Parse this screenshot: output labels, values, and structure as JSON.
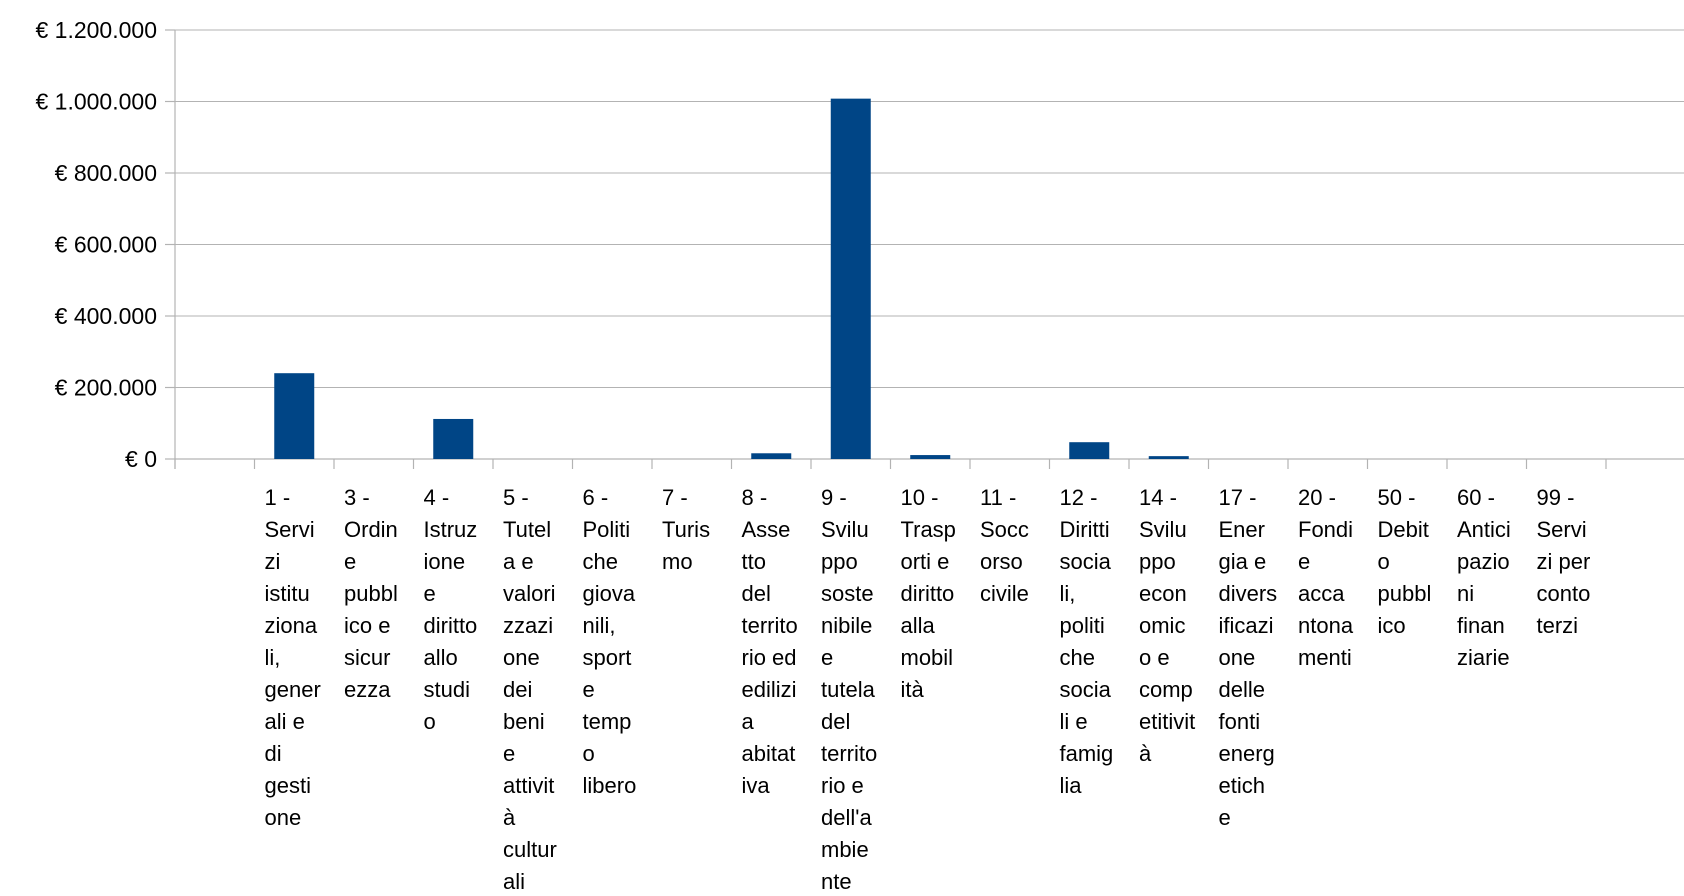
{
  "chart_data": {
    "type": "bar",
    "title": "",
    "xlabel": "",
    "ylabel": "",
    "ylim": [
      0,
      1200000
    ],
    "y_ticks": [
      0,
      200000,
      400000,
      600000,
      800000,
      1000000,
      1200000
    ],
    "y_tick_labels": [
      "€ 0",
      "€ 200.000",
      "€ 400.000",
      "€ 600.000",
      "€ 800.000",
      "€ 1.000.000",
      "€ 1.200.000"
    ],
    "grid": true,
    "legend": "none",
    "bar_color": "#004586",
    "categories": [
      "1 - Servizi istituzionali, generali e di gestione",
      "3 - Ordine pubblico e sicurezza",
      "4 - Istruzione e diritto allo studio",
      "5 - Tutela e valorizzazione dei beni e attività culturali",
      "6 - Politiche giovanili, sport e tempo libero",
      "7 - Turismo",
      "8 - Assetto del territorio ed edilizia abitativa",
      "9 - Sviluppo sostenibile e tutela del territorio e dell'ambiente",
      "10 - Trasporti e diritto alla mobilità",
      "11 - Soccorso civile",
      "12 - Diritti sociali, politiche sociali e famiglia",
      "14 - Sviluppo economico e competitività",
      "17 - Energia e diversificazione delle fonti energetiche",
      "20 - Fondi e accantonamenti",
      "50 - Debito pubblico",
      "60 - Anticipazioni finanziarie",
      "99 - Servizi per conto terzi"
    ],
    "category_label_lines": [
      [
        "1 -",
        "Servi",
        "zi",
        "istitu",
        "ziona",
        "li,",
        "gener",
        "ali e",
        "di",
        "gesti",
        "one"
      ],
      [
        "3 -",
        "Ordin",
        "e",
        "pubbl",
        "ico e",
        "sicur",
        "ezza"
      ],
      [
        "4 -",
        "Istruz",
        "ione",
        "e",
        "diritto",
        "allo",
        "studi",
        "o"
      ],
      [
        "5 -",
        "Tutel",
        "a e",
        "valori",
        "zzazi",
        "one",
        "dei",
        "beni",
        "e",
        "attivit",
        "à",
        "cultur",
        "ali"
      ],
      [
        "6 -",
        "Politi",
        "che",
        "giova",
        "nili,",
        "sport",
        "e",
        "temp",
        "o",
        "libero"
      ],
      [
        "7 -",
        "Turis",
        "mo"
      ],
      [
        "8 -",
        "Asse",
        "tto",
        "del",
        "territo",
        "rio ed",
        "edilizi",
        "a",
        "abitat",
        "iva"
      ],
      [
        "9 -",
        "Svilu",
        "ppo",
        "soste",
        "nibile",
        "e",
        "tutela",
        "del",
        "territo",
        "rio e",
        "dell'a",
        "mbie",
        "nte"
      ],
      [
        "10 -",
        "Trasp",
        "orti e",
        "diritto",
        "alla",
        "mobil",
        "ità"
      ],
      [
        "11 -",
        "Socc",
        "orso",
        "civile"
      ],
      [
        "12 -",
        "Diritti",
        "socia",
        "li,",
        "politi",
        "che",
        "socia",
        "li e",
        "famig",
        "lia"
      ],
      [
        "14 -",
        "Svilu",
        "ppo",
        "econ",
        "omic",
        "o e",
        "comp",
        "etitivit",
        "à"
      ],
      [
        "17 -",
        "Ener",
        "gia e",
        "divers",
        "ificazi",
        "one",
        "delle",
        "fonti",
        "energ",
        "etich",
        "e"
      ],
      [
        "20 -",
        "Fondi",
        "e",
        "acca",
        "ntona",
        "menti"
      ],
      [
        "50 -",
        "Debit",
        "o",
        "pubbl",
        "ico"
      ],
      [
        "60 -",
        "Antici",
        "pazio",
        "ni",
        "finan",
        "ziarie"
      ],
      [
        "99 -",
        "Servi",
        "zi per",
        "conto",
        "terzi"
      ]
    ],
    "values": [
      240000,
      0,
      112000,
      0,
      0,
      0,
      16000,
      1008000,
      11000,
      0,
      47000,
      8000,
      0,
      0,
      0,
      0,
      0
    ]
  }
}
